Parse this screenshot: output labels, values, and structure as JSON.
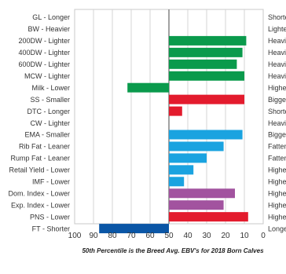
{
  "chart_data": {
    "type": "bar",
    "orientation": "horizontal",
    "x_reversed": true,
    "xlim": [
      0,
      100
    ],
    "reference_value": 50,
    "x_ticks": [
      "100",
      "90",
      "80",
      "70",
      "60",
      "50",
      "40",
      "30",
      "20",
      "10",
      "0"
    ],
    "caption": "50th Percentile is the Breed Avg. EBV's for 2018 Born Calves",
    "grid": true,
    "rows": [
      {
        "left_label": "GL - Longer",
        "right_label": "Shorte",
        "value": null,
        "color": ""
      },
      {
        "left_label": "BW - Heavier",
        "right_label": "Lighte",
        "value": null,
        "color": ""
      },
      {
        "left_label": "200DW - Lighter",
        "right_label": "Heavie",
        "value": 9,
        "color": "#0a9a4c"
      },
      {
        "left_label": "400DW - Lighter",
        "right_label": "Heavie",
        "value": 11,
        "color": "#0a9a4c"
      },
      {
        "left_label": "600DW - Lighter",
        "right_label": "Heavie",
        "value": 14,
        "color": "#0a9a4c"
      },
      {
        "left_label": "MCW - Lighter",
        "right_label": "Heavie",
        "value": 10,
        "color": "#0a9a4c"
      },
      {
        "left_label": "Milk - Lower",
        "right_label": "Highe",
        "value": 72,
        "color": "#0a9a4c"
      },
      {
        "left_label": "SS - Smaller",
        "right_label": "Bigger",
        "value": 10,
        "color": "#e31b2d"
      },
      {
        "left_label": "DTC - Longer",
        "right_label": "Shorte",
        "value": 43,
        "color": "#e31b2d"
      },
      {
        "left_label": "CW - Lighter",
        "right_label": "Heavie",
        "value": null,
        "color": ""
      },
      {
        "left_label": "EMA - Smaller",
        "right_label": "Bigger",
        "value": 11,
        "color": "#1aa3e0"
      },
      {
        "left_label": "Rib Fat - Leaner",
        "right_label": "Fatter",
        "value": 21,
        "color": "#1aa3e0"
      },
      {
        "left_label": "Rump Fat - Leaner",
        "right_label": "Fatter",
        "value": 30,
        "color": "#1aa3e0"
      },
      {
        "left_label": "Retail Yield - Lower",
        "right_label": "Highe",
        "value": 37,
        "color": "#1aa3e0"
      },
      {
        "left_label": "IMF - Lower",
        "right_label": "Highe",
        "value": 42,
        "color": "#1aa3e0"
      },
      {
        "left_label": "Dom. Index - Lower",
        "right_label": "Highe",
        "value": 15,
        "color": "#a2539f"
      },
      {
        "left_label": "Exp. Index - Lower",
        "right_label": "Highe",
        "value": 21,
        "color": "#a2539f"
      },
      {
        "left_label": "PNS - Lower",
        "right_label": "Highe",
        "value": 8,
        "color": "#e31b2d"
      },
      {
        "left_label": "FT - Shorter",
        "right_label": "Longe",
        "value": 87,
        "color": "#0a56a6"
      }
    ]
  }
}
